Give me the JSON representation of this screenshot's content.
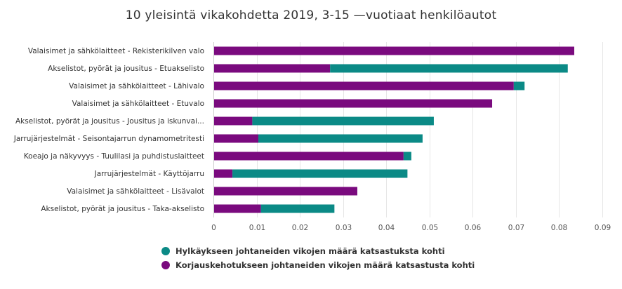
{
  "chart_data": {
    "type": "bar",
    "orientation": "horizontal",
    "stacked": true,
    "title": "10 yleisintä vikakohdetta 2019, 3-15 —vuotiaat henkilöautot",
    "categories": [
      "Valaisimet ja sähkölaitteet - Rekisterikilven valo",
      "Akselistot, pyörät ja jousitus - Etuakselisto",
      "Valaisimet ja sähkölaitteet - Lähivalo",
      "Valaisimet ja sähkölaitteet - Etuvalo",
      "Akselistot, pyörät ja jousitus - Jousitus ja iskunvai...",
      "Jarrujärjestelmät - Seisontajarrun dynamometritesti",
      "Koeajo ja näkyvyys - Tuulilasi ja puhdistuslaitteet",
      "Jarrujärjestelmät - Käyttöjarru",
      "Valaisimet ja sähkölaitteet - Lisävalot",
      "Akselistot, pyörät ja jousitus - Taka-akselisto"
    ],
    "series": [
      {
        "name": "Hylkäykseen johtaneiden vikojen määrä katsastuksta kohti",
        "color": "#0b8a86",
        "values": [
          0.0,
          0.055,
          0.0025,
          0.0,
          0.042,
          0.038,
          0.0018,
          0.0405,
          0.0,
          0.017
        ]
      },
      {
        "name": "Korjauskehotukseen johtaneiden vikojen määrä katsastusta kohti",
        "color": "#7a0a7e",
        "values": [
          0.0835,
          0.027,
          0.0695,
          0.0645,
          0.009,
          0.0104,
          0.044,
          0.0044,
          0.0333,
          0.011
        ]
      }
    ],
    "xlim": [
      0,
      0.09
    ],
    "xticks": [
      "0",
      "0.01",
      "0.02",
      "0.03",
      "0.04",
      "0.05",
      "0.06",
      "0.07",
      "0.08",
      "0.09"
    ],
    "xlabel": "",
    "ylabel": "",
    "grid": true,
    "legend_position": "bottom"
  }
}
